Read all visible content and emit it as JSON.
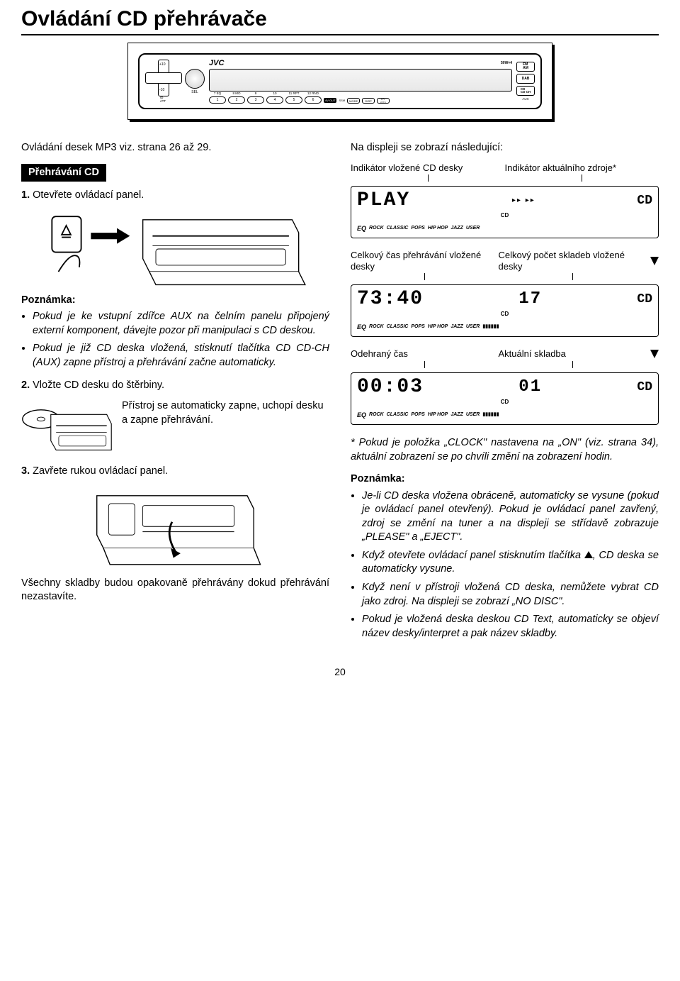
{
  "pageTitle": "Ovládání CD přehrávače",
  "radio": {
    "brand": "JVC",
    "power": "50W×4",
    "dpad": {
      "up": "+10",
      "down": "-10"
    },
    "leftLabels": {
      "att": "/D\nATT",
      "sel": "SEL"
    },
    "numLabels": [
      "7 EQ",
      "8 MO",
      "9",
      "10",
      "11 RPT",
      "12 RND"
    ],
    "numButtons": [
      "1",
      "2",
      "3",
      "4",
      "5",
      "6"
    ],
    "rightButtons": [
      "FM\nAM",
      "DAB",
      "CD\nCD CH"
    ],
    "miniButtons": [
      "MODE",
      "DISP",
      "TP/\nPTY"
    ],
    "aux": "AUX",
    "out": "4V OUT",
    "ssm": "SSM"
  },
  "left": {
    "intro": "Ovládání desek MP3 viz. strana 26 až 29.",
    "sectionTab": "Přehrávání CD",
    "step1": {
      "n": "1.",
      "text": "Otevřete ovládací panel."
    },
    "note": {
      "title": "Poznámka:",
      "items": [
        "Pokud je ke vstupní zdířce AUX na čelním panelu připojený externí komponent, dávejte pozor při manipulaci s CD deskou.",
        "Pokud je již CD deska vložená, stisknutí tlačítka CD CD-CH (AUX) zapne přístroj a přehrávání začne automaticky."
      ]
    },
    "step2": {
      "n": "2.",
      "text": "Vložte CD desku do štěrbiny."
    },
    "step2Aside": "Přístroj se automaticky zapne, uchopí desku a zapne přehrávání.",
    "step3": {
      "n": "3.",
      "text": "Zavřete rukou ovládací panel."
    },
    "replay": "Všechny skladby budou opakovaně přehrávány dokud přehrávání nezastavíte."
  },
  "right": {
    "displayIntro": "Na displeji se zobrazí následující:",
    "disp1": {
      "leftLabel": "Indikátor vložené CD desky",
      "rightLabel": "Indikátor aktuálního zdroje*",
      "main": "PLAY",
      "cd": "CD",
      "arrows": "▸▸  ▸▸"
    },
    "disp2": {
      "leftLabel": "Celkový čas přehrávání vložené desky",
      "rightLabel": "Celkový počet skladeb vložené desky",
      "time": "73:40",
      "tracks": "17",
      "cd": "CD"
    },
    "disp3": {
      "leftLabel": "Odehraný čas",
      "rightLabel": "Aktuální skladba",
      "time": "00:03",
      "track": "01",
      "cd": "CD"
    },
    "eqRow": [
      "EQ",
      "ROCK",
      "CLASSIC",
      "POPS",
      "HIP HOP",
      "JAZZ",
      "USER"
    ],
    "cdIcon": "CD",
    "starNote": "* Pokud je položka „CLOCK\" nastavena na „ON\" (viz. strana 34), aktuální zobrazení se po chvíli změní na zobrazení hodin.",
    "note2": {
      "title": "Poznámka:",
      "items": [
        "Je-li CD deska vložena obráceně, automaticky se vysune (pokud je ovládací panel otevřený). Pokud je ovládací panel zavřený, zdroj se změní na tuner a na displeji se střídavě zobrazuje „PLEASE\" a „EJECT\".",
        "Když otevřete ovládací panel stisknutím tlačítka EJECT_TRI, CD deska se automaticky vysune.",
        "Když není v přístroji vložená CD deska, nemůžete vybrat CD jako zdroj. Na displeji se zobrazí „NO DISC\".",
        "Pokud je vložená deska deskou CD Text, automaticky se objeví název desky/interpret a pak název skladby."
      ]
    }
  },
  "pageNum": "20",
  "colors": {
    "text": "#000000",
    "bg": "#ffffff",
    "tabBg": "#000000",
    "tabText": "#ffffff"
  }
}
